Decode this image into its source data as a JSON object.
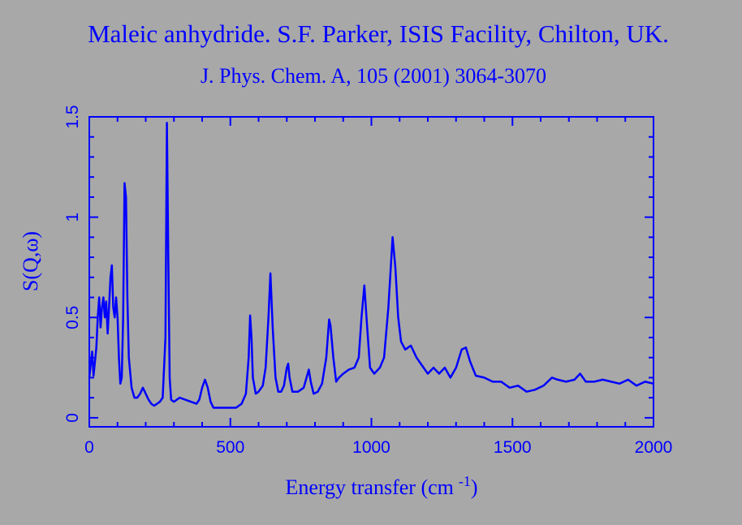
{
  "chart_data": {
    "type": "line",
    "title": "Maleic anhydride. S.F. Parker, ISIS Facility, Chilton, UK.",
    "subtitle": "J. Phys. Chem. A, 105 (2001) 3064-3070",
    "x_label": "Energy transfer (cm",
    "x_label_sup": "-1",
    "x_label_end": ")",
    "y_label": "S(Q,ω)",
    "color": "#0000ff",
    "xlim": [
      0,
      2000
    ],
    "ylim": [
      -0.045,
      1.5
    ],
    "xticks": [
      0,
      500,
      1000,
      1500,
      2000
    ],
    "yticks": [
      0,
      0.5,
      1,
      1.5
    ],
    "xminorticks": [
      100,
      200,
      300,
      400,
      600,
      700,
      800,
      900,
      1100,
      1200,
      1300,
      1400,
      1600,
      1700,
      1800,
      1900
    ],
    "yminorticks": [
      0.1,
      0.2,
      0.3,
      0.4,
      0.6,
      0.7,
      0.8,
      0.9,
      1.1,
      1.2,
      1.3,
      1.4
    ],
    "x": [
      0,
      10,
      15,
      25,
      30,
      35,
      40,
      45,
      50,
      55,
      60,
      65,
      70,
      75,
      80,
      85,
      90,
      95,
      100,
      105,
      110,
      115,
      120,
      125,
      130,
      135,
      140,
      150,
      160,
      170,
      180,
      190,
      200,
      210,
      220,
      230,
      240,
      250,
      260,
      270,
      275,
      280,
      285,
      290,
      300,
      320,
      340,
      360,
      380,
      390,
      400,
      410,
      420,
      430,
      440,
      460,
      480,
      500,
      520,
      540,
      555,
      565,
      570,
      575,
      580,
      590,
      600,
      615,
      625,
      635,
      642,
      650,
      660,
      670,
      680,
      690,
      700,
      705,
      710,
      720,
      740,
      760,
      770,
      778,
      785,
      795,
      810,
      825,
      840,
      850,
      855,
      865,
      875,
      885,
      900,
      920,
      940,
      955,
      965,
      975,
      985,
      995,
      1010,
      1030,
      1045,
      1060,
      1075,
      1085,
      1095,
      1105,
      1120,
      1140,
      1160,
      1180,
      1200,
      1220,
      1240,
      1260,
      1280,
      1300,
      1320,
      1335,
      1350,
      1370,
      1400,
      1430,
      1460,
      1490,
      1520,
      1550,
      1580,
      1610,
      1640,
      1660,
      1690,
      1720,
      1740,
      1760,
      1790,
      1820,
      1850,
      1880,
      1910,
      1940,
      1970,
      2000
    ],
    "values": [
      0.2,
      0.33,
      0.21,
      0.35,
      0.5,
      0.6,
      0.45,
      0.55,
      0.6,
      0.5,
      0.58,
      0.42,
      0.55,
      0.7,
      0.76,
      0.55,
      0.5,
      0.6,
      0.5,
      0.3,
      0.17,
      0.2,
      0.5,
      1.17,
      1.1,
      0.6,
      0.3,
      0.15,
      0.1,
      0.1,
      0.12,
      0.15,
      0.12,
      0.09,
      0.07,
      0.06,
      0.07,
      0.08,
      0.1,
      0.4,
      1.47,
      0.8,
      0.2,
      0.09,
      0.08,
      0.1,
      0.09,
      0.08,
      0.07,
      0.09,
      0.15,
      0.19,
      0.15,
      0.08,
      0.05,
      0.05,
      0.05,
      0.05,
      0.05,
      0.07,
      0.12,
      0.3,
      0.51,
      0.4,
      0.2,
      0.12,
      0.13,
      0.16,
      0.25,
      0.5,
      0.72,
      0.45,
      0.2,
      0.13,
      0.13,
      0.16,
      0.25,
      0.27,
      0.2,
      0.13,
      0.13,
      0.15,
      0.2,
      0.24,
      0.18,
      0.12,
      0.13,
      0.17,
      0.3,
      0.49,
      0.46,
      0.3,
      0.18,
      0.2,
      0.22,
      0.24,
      0.25,
      0.3,
      0.5,
      0.66,
      0.45,
      0.25,
      0.22,
      0.25,
      0.3,
      0.55,
      0.9,
      0.75,
      0.5,
      0.38,
      0.34,
      0.36,
      0.3,
      0.26,
      0.22,
      0.25,
      0.22,
      0.25,
      0.2,
      0.25,
      0.34,
      0.35,
      0.28,
      0.21,
      0.2,
      0.18,
      0.18,
      0.15,
      0.16,
      0.13,
      0.14,
      0.16,
      0.2,
      0.19,
      0.18,
      0.19,
      0.22,
      0.18,
      0.18,
      0.19,
      0.18,
      0.17,
      0.19,
      0.16,
      0.18,
      0.17
    ]
  }
}
